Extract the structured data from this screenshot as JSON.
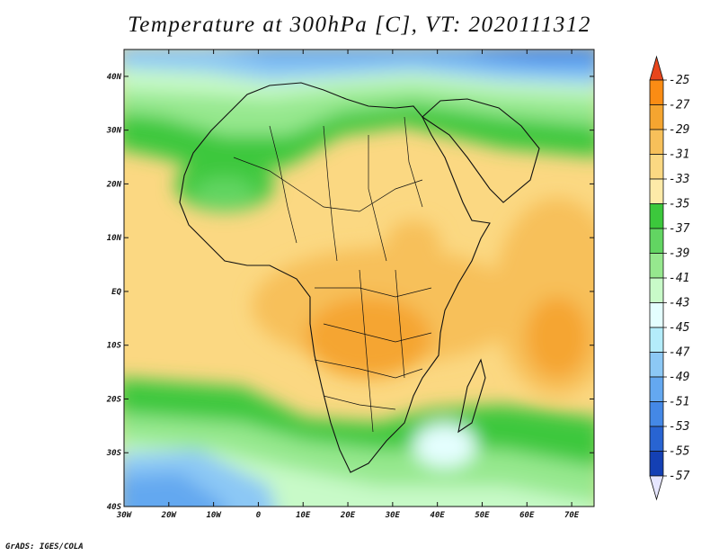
{
  "title": "Temperature at 300hPa [C], VT: 2020111312",
  "credit": "GrADS: IGES/COLA",
  "map": {
    "lon_range": [
      -30,
      75
    ],
    "lat_range": [
      -40,
      45
    ],
    "lon_ticks": [
      {
        "value": -30,
        "label": "30W"
      },
      {
        "value": -20,
        "label": "20W"
      },
      {
        "value": -10,
        "label": "10W"
      },
      {
        "value": 0,
        "label": "0"
      },
      {
        "value": 10,
        "label": "10E"
      },
      {
        "value": 20,
        "label": "20E"
      },
      {
        "value": 30,
        "label": "30E"
      },
      {
        "value": 40,
        "label": "40E"
      },
      {
        "value": 50,
        "label": "50E"
      },
      {
        "value": 60,
        "label": "60E"
      },
      {
        "value": 70,
        "label": "70E"
      }
    ],
    "lat_ticks": [
      {
        "value": 40,
        "label": "40N"
      },
      {
        "value": 30,
        "label": "30N"
      },
      {
        "value": 20,
        "label": "20N"
      },
      {
        "value": 10,
        "label": "10N"
      },
      {
        "value": 0,
        "label": "EQ"
      },
      {
        "value": -10,
        "label": "10S"
      },
      {
        "value": -20,
        "label": "20S"
      },
      {
        "value": -30,
        "label": "30S"
      },
      {
        "value": -40,
        "label": "40S"
      }
    ]
  },
  "colorbar": {
    "labels": [
      "-25",
      "-27",
      "-29",
      "-31",
      "-33",
      "-35",
      "-37",
      "-39",
      "-41",
      "-43",
      "-45",
      "-47",
      "-49",
      "-51",
      "-53",
      "-55",
      "-57"
    ],
    "top_triangle_color": "#e8461c",
    "bottom_triangle_color": "#e6e6ff",
    "colors": [
      "#f06414",
      "#fa8c14",
      "#f5a530",
      "#f7c05a",
      "#fbd882",
      "#fdeaa8",
      "#3cc83c",
      "#62d562",
      "#96e88e",
      "#c8fac8",
      "#e4fefe",
      "#b4ecfa",
      "#8cc8f5",
      "#64a8f0",
      "#4488e6",
      "#2864d2",
      "#1440b4",
      "#0a1e80"
    ]
  }
}
